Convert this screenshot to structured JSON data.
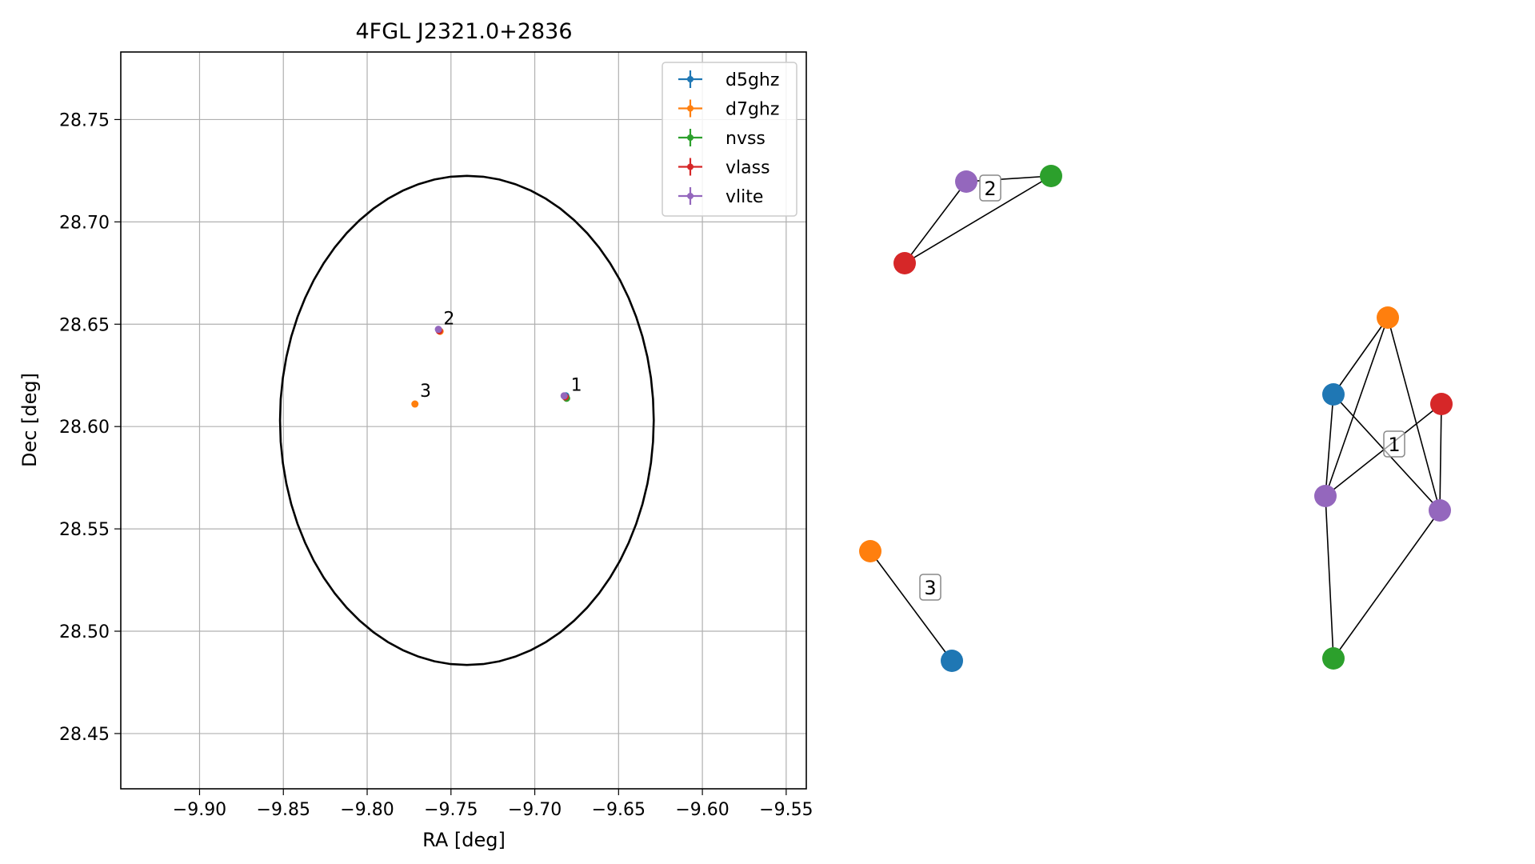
{
  "chart_data": [
    {
      "type": "scatter",
      "title": "4FGL J2321.0+2836",
      "xlabel": "RA [deg]",
      "ylabel": "Dec [deg]",
      "xlim": [
        -9.947,
        -9.538
      ],
      "ylim": [
        28.423,
        28.783
      ],
      "xticks": [
        -9.9,
        -9.85,
        -9.8,
        -9.75,
        -9.7,
        -9.65,
        -9.6,
        -9.55
      ],
      "xtick_labels": [
        "−9.90",
        "−9.85",
        "−9.80",
        "−9.75",
        "−9.70",
        "−9.65",
        "−9.60",
        "−9.55"
      ],
      "yticks": [
        28.45,
        28.5,
        28.55,
        28.6,
        28.65,
        28.7,
        28.75
      ],
      "ytick_labels": [
        "28.45",
        "28.50",
        "28.55",
        "28.60",
        "28.65",
        "28.70",
        "28.75"
      ],
      "grid": true,
      "legend": "top-right",
      "series": [
        {
          "name": "d5ghz",
          "color": "#1f77b4",
          "points": [
            {
              "x": -9.6815,
              "y": 28.615
            }
          ]
        },
        {
          "name": "d7ghz",
          "color": "#ff7f0e",
          "points": [
            {
              "x": -9.7715,
              "y": 28.611
            },
            {
              "x": -9.7565,
              "y": 28.6465
            }
          ]
        },
        {
          "name": "nvss",
          "color": "#2ca02c",
          "points": [
            {
              "x": -9.681,
              "y": 28.6138
            }
          ]
        },
        {
          "name": "vlass",
          "color": "#d62728",
          "points": [
            {
              "x": -9.6818,
              "y": 28.6145
            },
            {
              "x": -9.757,
              "y": 28.6468
            }
          ]
        },
        {
          "name": "vlite",
          "color": "#9467bd",
          "points": [
            {
              "x": -9.6825,
              "y": 28.615
            },
            {
              "x": -9.7575,
              "y": 28.6475
            }
          ]
        }
      ],
      "ellipse": {
        "center": [
          -9.7405,
          28.603
        ],
        "ra_semi_axis": 0.1115,
        "dec_semi_axis": 0.1195,
        "color": "#000000"
      },
      "annotations": [
        {
          "text": "1",
          "x": -9.6785,
          "y": 28.6175
        },
        {
          "text": "2",
          "x": -9.7545,
          "y": 28.65
        },
        {
          "text": "3",
          "x": -9.7685,
          "y": 28.6145
        }
      ]
    },
    {
      "type": "network",
      "node_colors": {
        "d5ghz": "#1f77b4",
        "d7ghz": "#ff7f0e",
        "nvss": "#2ca02c",
        "vlass": "#d62728",
        "vlite": "#9467bd"
      },
      "clusters": [
        {
          "label": "2",
          "nodes": [
            "vlite",
            "nvss",
            "vlass"
          ]
        },
        {
          "label": "1",
          "nodes": [
            "d7ghz",
            "d5ghz",
            "vlass",
            "vlite",
            "vlite",
            "nvss"
          ]
        },
        {
          "label": "3",
          "nodes": [
            "d7ghz",
            "d5ghz"
          ]
        }
      ]
    }
  ]
}
